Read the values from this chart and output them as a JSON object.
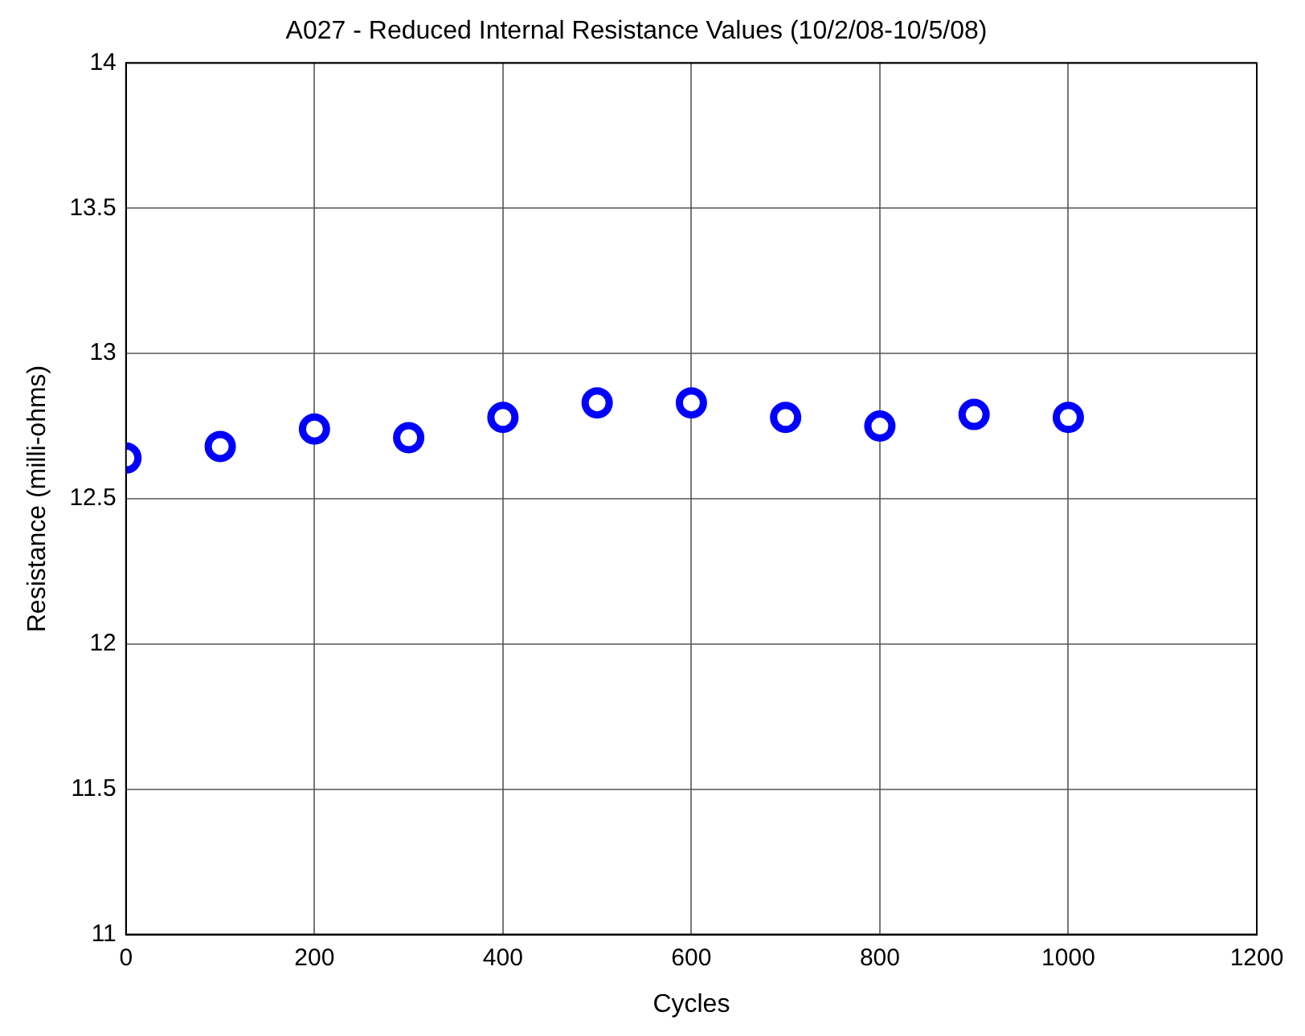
{
  "chart_data": {
    "type": "scatter",
    "title": "A027 - Reduced Internal Resistance Values (10/2/08-10/5/08)",
    "xlabel": "Cycles",
    "ylabel": "Resistance (milli-ohms)",
    "x": [
      0,
      100,
      200,
      300,
      400,
      500,
      600,
      700,
      800,
      900,
      1000
    ],
    "series": [
      {
        "color": "#0000ff",
        "values": [
          12.64,
          12.68,
          12.74,
          12.71,
          12.78,
          12.83,
          12.83,
          12.78,
          12.75,
          12.79,
          12.78
        ]
      }
    ],
    "xlim": [
      0,
      1200
    ],
    "xticks": [
      0,
      200,
      400,
      600,
      800,
      1000,
      1200
    ],
    "ylim": [
      11,
      14
    ],
    "yticks": [
      11,
      11.5,
      12,
      12.5,
      13,
      13.5,
      14
    ],
    "grid": true,
    "legend": false,
    "marker": "circle"
  }
}
